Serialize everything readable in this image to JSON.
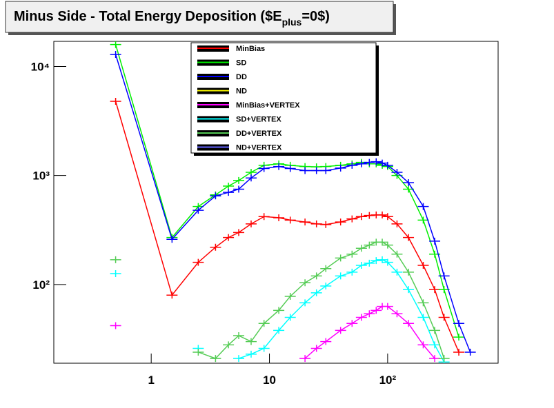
{
  "chart_data": {
    "type": "line",
    "title": [
      "Minus Side - Total Energy Deposition ($E",
      "plus",
      "=0$)"
    ],
    "xlog": true,
    "ylog": true,
    "xlim": [
      0.15,
      860
    ],
    "ylim": [
      19,
      17000
    ],
    "xticks": [
      1,
      10,
      {
        "value": 100,
        "label": "10²"
      }
    ],
    "yticks": [
      {
        "value": 100,
        "label": "10²"
      },
      {
        "value": 1000,
        "label": "10³"
      },
      {
        "value": 10000,
        "label": "10⁴"
      }
    ],
    "x": [
      0.5,
      1.5,
      2.5,
      3.5,
      4.5,
      5.5,
      7,
      9,
      12,
      15,
      20,
      25,
      30,
      40,
      50,
      60,
      70,
      80,
      90,
      100,
      120,
      150,
      200,
      250,
      300,
      400,
      500
    ],
    "series": [
      {
        "name": "MinBias",
        "color": "#ff0000",
        "values": [
          4790,
          80,
          160,
          220,
          270,
          300,
          360,
          420,
          410,
          390,
          375,
          360,
          355,
          375,
          400,
          420,
          430,
          435,
          435,
          420,
          360,
          270,
          150,
          90,
          50,
          24,
          null
        ]
      },
      {
        "name": "SD",
        "color": "#00ee00",
        "values": [
          15900,
          270,
          520,
          665,
          800,
          900,
          1070,
          1240,
          1280,
          1240,
          1210,
          1200,
          1210,
          1240,
          1280,
          1320,
          1280,
          1280,
          1240,
          1210,
          1000,
          750,
          390,
          190,
          90,
          33,
          null
        ]
      },
      {
        "name": "DD",
        "color": "#0000ff",
        "values": [
          12900,
          260,
          480,
          650,
          700,
          750,
          950,
          1160,
          1210,
          1160,
          1110,
          1110,
          1110,
          1170,
          1240,
          1280,
          1320,
          1340,
          1300,
          1240,
          1070,
          860,
          520,
          250,
          120,
          44,
          24
        ]
      },
      {
        "name": "ND",
        "color": "#ffff00",
        "values": [
          null,
          null,
          null,
          null,
          null,
          null,
          null,
          null,
          null,
          null,
          null,
          null,
          null,
          null,
          null,
          null,
          null,
          null,
          null,
          null,
          null,
          null,
          null,
          null,
          null,
          null,
          null
        ]
      },
      {
        "name": "MinBias+VERTEX",
        "color": "#ff00ff",
        "values": [
          42,
          null,
          null,
          null,
          null,
          null,
          null,
          null,
          null,
          null,
          21,
          26,
          30,
          38,
          44,
          50,
          54,
          58,
          63,
          63,
          54,
          44,
          28,
          21,
          null,
          null,
          null
        ]
      },
      {
        "name": "SD+VERTEX",
        "color": "#00ffff",
        "values": [
          126,
          null,
          26,
          null,
          null,
          21,
          23,
          26,
          38,
          50,
          68,
          84,
          97,
          120,
          130,
          150,
          157,
          166,
          169,
          160,
          130,
          90,
          50,
          28,
          19.5,
          null,
          null
        ]
      },
      {
        "name": "DD+VERTEX",
        "color": "#55cc55",
        "values": [
          169,
          null,
          24,
          21,
          28,
          34,
          30,
          44,
          58,
          78,
          104,
          120,
          140,
          175,
          190,
          215,
          230,
          245,
          245,
          230,
          190,
          130,
          68,
          38,
          21,
          null,
          null
        ]
      },
      {
        "name": "ND+VERTEX",
        "color": "#6666ff",
        "values": [
          null,
          null,
          null,
          null,
          null,
          null,
          null,
          null,
          null,
          null,
          null,
          null,
          null,
          null,
          null,
          null,
          null,
          null,
          null,
          null,
          null,
          null,
          null,
          null,
          null,
          null,
          null
        ]
      }
    ]
  }
}
